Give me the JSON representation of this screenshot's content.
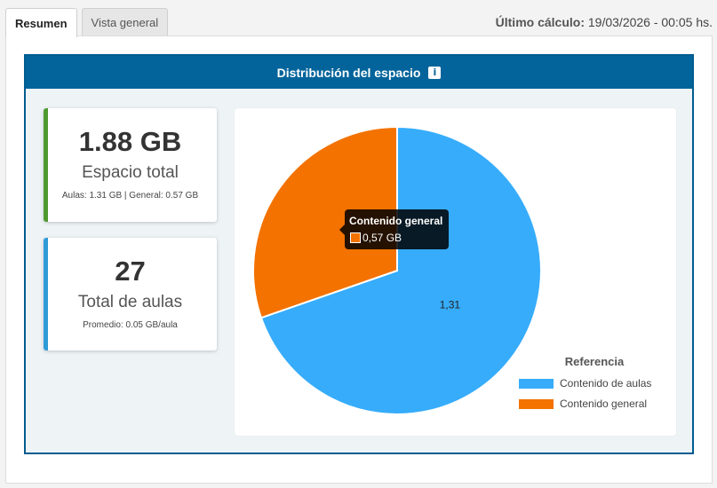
{
  "tabs": [
    {
      "label": "Resumen",
      "active": true
    },
    {
      "label": "Vista general",
      "active": false
    }
  ],
  "last_calc": {
    "label": "Último cálculo:",
    "value": " 19/03/2026 - 00:05 hs."
  },
  "box": {
    "title": "Distribución del espacio",
    "info_icon": "i"
  },
  "cards": {
    "total": {
      "value": "1.88 GB",
      "label": "Espacio total",
      "detail": "Aulas: 1.31 GB | General: 0.57 GB",
      "accent": "#4e9a2f"
    },
    "classes": {
      "value": "27",
      "label": "Total de aulas",
      "detail": "Promedio: 0.05 GB/aula",
      "accent": "#2f9bd6"
    }
  },
  "chart_data": {
    "type": "pie",
    "categories": [
      "Contenido de aulas",
      "Contenido general"
    ],
    "values": [
      1.31,
      0.57
    ],
    "colors": [
      "#36acfb",
      "#f37200"
    ],
    "slice_labels": [
      "1,31",
      ""
    ],
    "legend_title": "Referencia",
    "legend_position": "bottom-right"
  },
  "tooltip": {
    "title": "Contenido general",
    "value": "0,57 GB"
  }
}
